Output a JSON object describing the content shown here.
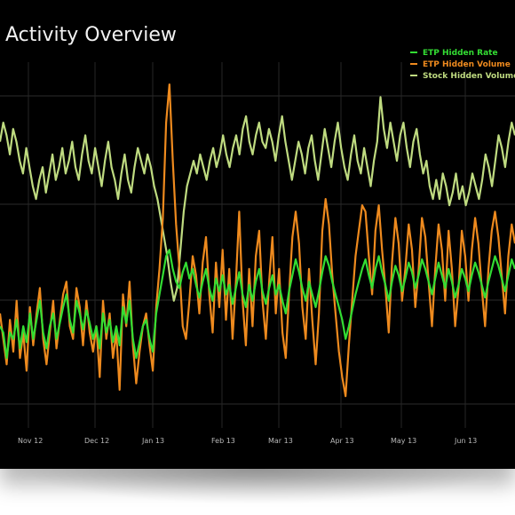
{
  "chart_data": {
    "type": "line",
    "title": "Activity Overview",
    "x_tick_labels": [
      "Nov 12",
      "Dec 12",
      "Jan 13",
      "Feb 13",
      "Mar 13",
      "Apr 13",
      "May 13",
      "Jun 13"
    ],
    "grid": true,
    "legend_position": "top-right",
    "series": [
      {
        "name": "ETP Hidden Rate",
        "color": "#33dd33",
        "values": [
          0.62,
          0.6,
          0.52,
          0.6,
          0.58,
          0.64,
          0.55,
          0.62,
          0.57,
          0.66,
          0.58,
          0.64,
          0.7,
          0.6,
          0.55,
          0.62,
          0.66,
          0.58,
          0.63,
          0.68,
          0.72,
          0.64,
          0.6,
          0.7,
          0.66,
          0.61,
          0.67,
          0.63,
          0.58,
          0.62,
          0.55,
          0.66,
          0.6,
          0.64,
          0.57,
          0.62,
          0.56,
          0.68,
          0.63,
          0.7,
          0.58,
          0.52,
          0.57,
          0.62,
          0.64,
          0.58,
          0.54,
          0.66,
          0.72,
          0.78,
          0.84,
          0.86,
          0.8,
          0.76,
          0.74,
          0.79,
          0.82,
          0.77,
          0.8,
          0.75,
          0.71,
          0.76,
          0.8,
          0.74,
          0.7,
          0.77,
          0.73,
          0.78,
          0.72,
          0.75,
          0.69,
          0.74,
          0.79,
          0.72,
          0.68,
          0.75,
          0.7,
          0.76,
          0.8,
          0.73,
          0.69,
          0.74,
          0.78,
          0.72,
          0.75,
          0.7,
          0.66,
          0.73,
          0.78,
          0.83,
          0.79,
          0.74,
          0.7,
          0.76,
          0.72,
          0.68,
          0.73,
          0.79,
          0.84,
          0.81,
          0.76,
          0.72,
          0.68,
          0.64,
          0.58,
          0.62,
          0.67,
          0.72,
          0.76,
          0.8,
          0.83,
          0.78,
          0.74,
          0.8,
          0.84,
          0.79,
          0.75,
          0.7,
          0.76,
          0.81,
          0.78,
          0.73,
          0.77,
          0.82,
          0.79,
          0.74,
          0.78,
          0.83,
          0.8,
          0.76,
          0.72,
          0.77,
          0.82,
          0.78,
          0.74,
          0.8,
          0.76,
          0.71,
          0.75,
          0.8,
          0.77,
          0.73,
          0.78,
          0.82,
          0.79,
          0.75,
          0.71,
          0.76,
          0.8,
          0.84,
          0.81,
          0.77,
          0.73,
          0.78,
          0.83,
          0.8
        ],
        "unit": ""
      },
      {
        "name": "ETP Hidden Volume",
        "color": "#ee8a1e",
        "values": [
          0.66,
          0.58,
          0.5,
          0.64,
          0.54,
          0.7,
          0.52,
          0.6,
          0.48,
          0.68,
          0.56,
          0.66,
          0.74,
          0.58,
          0.5,
          0.6,
          0.7,
          0.55,
          0.64,
          0.72,
          0.76,
          0.62,
          0.58,
          0.74,
          0.68,
          0.56,
          0.7,
          0.6,
          0.54,
          0.62,
          0.46,
          0.7,
          0.58,
          0.66,
          0.52,
          0.6,
          0.42,
          0.72,
          0.62,
          0.76,
          0.56,
          0.44,
          0.54,
          0.62,
          0.66,
          0.56,
          0.48,
          0.68,
          0.8,
          0.96,
          1.26,
          1.38,
          1.14,
          0.94,
          0.8,
          0.62,
          0.58,
          0.7,
          0.84,
          0.78,
          0.66,
          0.82,
          0.9,
          0.72,
          0.6,
          0.82,
          0.68,
          0.86,
          0.64,
          0.8,
          0.58,
          0.76,
          0.98,
          0.7,
          0.56,
          0.8,
          0.62,
          0.84,
          0.92,
          0.7,
          0.58,
          0.76,
          0.9,
          0.66,
          0.8,
          0.6,
          0.52,
          0.72,
          0.9,
          0.98,
          0.88,
          0.68,
          0.58,
          0.8,
          0.64,
          0.5,
          0.66,
          0.92,
          1.02,
          0.94,
          0.78,
          0.66,
          0.54,
          0.46,
          0.4,
          0.56,
          0.7,
          0.84,
          0.92,
          1.0,
          0.98,
          0.84,
          0.72,
          0.92,
          1.0,
          0.86,
          0.74,
          0.6,
          0.82,
          0.96,
          0.88,
          0.7,
          0.8,
          0.94,
          0.86,
          0.68,
          0.8,
          0.96,
          0.9,
          0.76,
          0.62,
          0.8,
          0.94,
          0.86,
          0.7,
          0.92,
          0.8,
          0.62,
          0.74,
          0.92,
          0.84,
          0.7,
          0.86,
          0.96,
          0.88,
          0.74,
          0.62,
          0.8,
          0.92,
          0.98,
          0.9,
          0.78,
          0.66,
          0.84,
          0.94,
          0.88
        ],
        "unit": ""
      },
      {
        "name": "Stock Hidden Volume",
        "color": "#bfdb80",
        "values": [
          1.2,
          1.26,
          1.22,
          1.16,
          1.24,
          1.2,
          1.14,
          1.1,
          1.18,
          1.12,
          1.06,
          1.02,
          1.08,
          1.12,
          1.04,
          1.1,
          1.16,
          1.08,
          1.12,
          1.18,
          1.1,
          1.14,
          1.2,
          1.12,
          1.08,
          1.16,
          1.22,
          1.14,
          1.1,
          1.18,
          1.12,
          1.06,
          1.14,
          1.2,
          1.12,
          1.08,
          1.02,
          1.1,
          1.16,
          1.08,
          1.04,
          1.12,
          1.18,
          1.14,
          1.1,
          1.16,
          1.12,
          1.06,
          1.02,
          0.96,
          0.9,
          0.84,
          0.76,
          0.7,
          0.74,
          0.86,
          0.98,
          1.06,
          1.1,
          1.14,
          1.1,
          1.16,
          1.12,
          1.08,
          1.14,
          1.18,
          1.12,
          1.16,
          1.22,
          1.16,
          1.12,
          1.18,
          1.22,
          1.16,
          1.24,
          1.28,
          1.2,
          1.16,
          1.22,
          1.26,
          1.2,
          1.18,
          1.24,
          1.2,
          1.14,
          1.22,
          1.28,
          1.2,
          1.14,
          1.08,
          1.14,
          1.2,
          1.16,
          1.1,
          1.18,
          1.22,
          1.14,
          1.08,
          1.16,
          1.24,
          1.18,
          1.12,
          1.2,
          1.26,
          1.18,
          1.12,
          1.08,
          1.16,
          1.22,
          1.14,
          1.1,
          1.18,
          1.12,
          1.06,
          1.14,
          1.2,
          1.34,
          1.24,
          1.18,
          1.26,
          1.2,
          1.14,
          1.22,
          1.26,
          1.18,
          1.12,
          1.2,
          1.24,
          1.16,
          1.1,
          1.14,
          1.06,
          1.02,
          1.08,
          1.02,
          1.1,
          1.06,
          1.0,
          1.04,
          1.1,
          1.02,
          1.06,
          1.0,
          1.04,
          1.1,
          1.06,
          1.02,
          1.08,
          1.16,
          1.12,
          1.06,
          1.14,
          1.22,
          1.18,
          1.12,
          1.2,
          1.26,
          1.22
        ],
        "unit": ""
      }
    ]
  }
}
